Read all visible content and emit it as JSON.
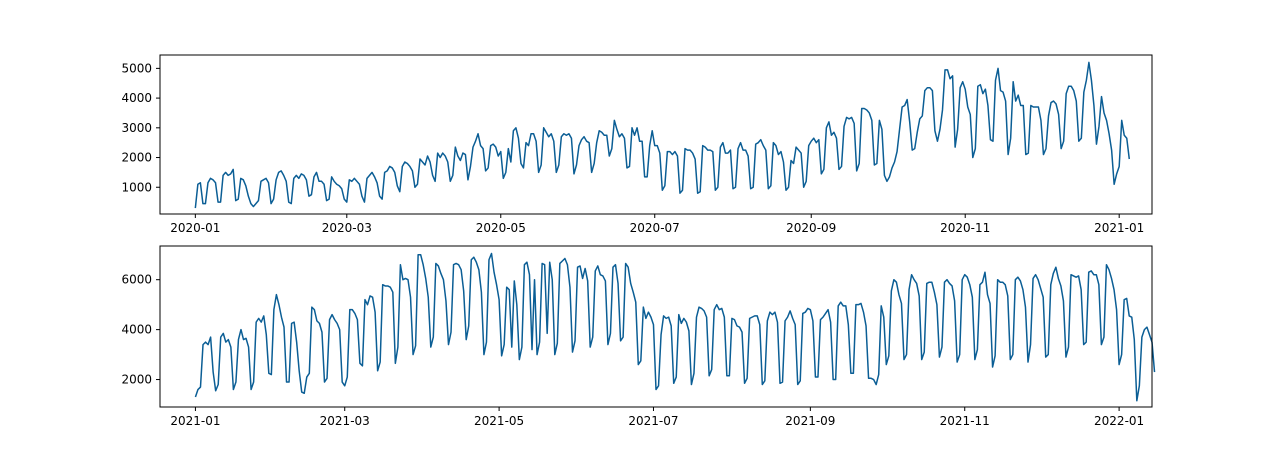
{
  "colors": {
    "line": "#0b5e95",
    "axes": "#000000",
    "background": "#ffffff"
  },
  "chart_data": [
    {
      "type": "line",
      "title": "",
      "xlabel": "",
      "ylabel": "",
      "grid": false,
      "xlim": [
        "2019-12-18",
        "2021-01-14"
      ],
      "ylim": [
        100,
        5450
      ],
      "x_ticks": [
        {
          "date": "2020-01-01",
          "label": "2020-01"
        },
        {
          "date": "2020-03-01",
          "label": "2020-03"
        },
        {
          "date": "2020-05-01",
          "label": "2020-05"
        },
        {
          "date": "2020-07-01",
          "label": "2020-07"
        },
        {
          "date": "2020-09-01",
          "label": "2020-09"
        },
        {
          "date": "2020-11-01",
          "label": "2020-11"
        },
        {
          "date": "2021-01-01",
          "label": "2021-01"
        }
      ],
      "y_ticks": [
        {
          "value": 1000,
          "label": "1000"
        },
        {
          "value": 2000,
          "label": "2000"
        },
        {
          "value": 3000,
          "label": "3000"
        },
        {
          "value": 4000,
          "label": "4000"
        },
        {
          "value": 5000,
          "label": "5000"
        }
      ],
      "series": [
        {
          "start": "2020-01-01",
          "values": [
            300,
            1100,
            1150,
            450,
            450,
            1150,
            1300,
            1250,
            1150,
            500,
            500,
            1400,
            1500,
            1400,
            1450,
            1600,
            550,
            600,
            1300,
            1250,
            1050,
            700,
            450,
            350,
            450,
            550,
            1200,
            1250,
            1300,
            1150,
            450,
            600,
            1250,
            1500,
            1550,
            1400,
            1200,
            500,
            450,
            1300,
            1400,
            1300,
            1450,
            1400,
            1250,
            700,
            750,
            1350,
            1500,
            1200,
            1200,
            1100,
            550,
            600,
            1350,
            1200,
            1100,
            1050,
            950,
            600,
            500,
            1250,
            1200,
            1300,
            1200,
            1100,
            700,
            500,
            1300,
            1400,
            1500,
            1350,
            1150,
            700,
            600,
            1500,
            1550,
            1700,
            1650,
            1500,
            1050,
            850,
            1700,
            1850,
            1800,
            1700,
            1550,
            1000,
            1100,
            1950,
            1850,
            1750,
            2050,
            1850,
            1400,
            1200,
            2150,
            2000,
            2150,
            2050,
            1850,
            1200,
            1400,
            2350,
            2050,
            1900,
            2150,
            2100,
            1250,
            1700,
            2350,
            2550,
            2800,
            2400,
            2300,
            1550,
            1650,
            2400,
            2450,
            2350,
            2050,
            2200,
            1300,
            1500,
            2300,
            1850,
            2900,
            3000,
            2650,
            1800,
            1650,
            2500,
            2400,
            2800,
            2800,
            2550,
            1500,
            1750,
            3000,
            2850,
            2700,
            2800,
            2550,
            1500,
            1750,
            2700,
            2800,
            2750,
            2800,
            2650,
            1450,
            1750,
            2400,
            2600,
            2700,
            2550,
            2500,
            1500,
            1800,
            2500,
            2900,
            2850,
            2750,
            2750,
            2050,
            2300,
            3250,
            2950,
            2700,
            2800,
            2650,
            1650,
            1700,
            3000,
            2750,
            3000,
            2550,
            2550,
            1350,
            1350,
            2400,
            2900,
            2400,
            2400,
            2150,
            900,
            1050,
            2200,
            2200,
            2100,
            2200,
            2050,
            800,
            900,
            2300,
            2250,
            2250,
            2150,
            1950,
            800,
            850,
            2400,
            2350,
            2250,
            2250,
            2200,
            900,
            1000,
            2350,
            2500,
            2150,
            2150,
            2250,
            950,
            1000,
            2300,
            2500,
            2250,
            2250,
            2050,
            950,
            1000,
            2450,
            2500,
            2600,
            2400,
            2250,
            950,
            1050,
            2500,
            2400,
            2100,
            2200,
            1850,
            900,
            1000,
            1900,
            1800,
            2350,
            2250,
            2150,
            1000,
            1200,
            2400,
            2550,
            2650,
            2500,
            2600,
            1450,
            1600,
            3000,
            3200,
            2750,
            2850,
            2650,
            1600,
            1700,
            3050,
            3350,
            3300,
            3350,
            3150,
            1550,
            1800,
            3650,
            3650,
            3600,
            3500,
            3250,
            1750,
            1800,
            3250,
            2950,
            1400,
            1200,
            1350,
            1650,
            1850,
            2200,
            2950,
            3700,
            3750,
            3950,
            3200,
            2250,
            2300,
            2850,
            3300,
            3400,
            4250,
            4350,
            4350,
            4250,
            2900,
            2550,
            2950,
            3600,
            4950,
            4950,
            4650,
            4750,
            2350,
            2950,
            4350,
            4550,
            4300,
            3700,
            3450,
            2000,
            2300,
            4400,
            4450,
            4150,
            4300,
            3750,
            2600,
            2550,
            4600,
            5000,
            4250,
            4200,
            3900,
            2100,
            2650,
            4550,
            3900,
            4100,
            3750,
            3750,
            2100,
            2150,
            3750,
            3700,
            3700,
            3700,
            3250,
            2100,
            2300,
            3400,
            3850,
            3900,
            3800,
            3450,
            2300,
            2550,
            4150,
            4400,
            4400,
            4250,
            3900,
            2550,
            2650,
            4200,
            4600,
            5200,
            4600,
            3750,
            2450,
            3050,
            4050,
            3500,
            3250,
            2800,
            2250,
            1100,
            1450,
            1700,
            3250,
            2750,
            2650,
            1950
          ]
        }
      ]
    },
    {
      "type": "line",
      "title": "",
      "xlabel": "",
      "ylabel": "",
      "grid": false,
      "xlim": [
        "2020-12-18",
        "2022-01-14"
      ],
      "ylim": [
        900,
        7350
      ],
      "x_ticks": [
        {
          "date": "2021-01-01",
          "label": "2021-01"
        },
        {
          "date": "2021-03-01",
          "label": "2021-03"
        },
        {
          "date": "2021-05-01",
          "label": "2021-05"
        },
        {
          "date": "2021-07-01",
          "label": "2021-07"
        },
        {
          "date": "2021-09-01",
          "label": "2021-09"
        },
        {
          "date": "2021-11-01",
          "label": "2021-11"
        },
        {
          "date": "2022-01-01",
          "label": "2022-01"
        }
      ],
      "y_ticks": [
        {
          "value": 2000,
          "label": "2000"
        },
        {
          "value": 4000,
          "label": "4000"
        },
        {
          "value": 6000,
          "label": "6000"
        }
      ],
      "series": [
        {
          "start": "2021-01-01",
          "values": [
            1300,
            1600,
            1700,
            3400,
            3500,
            3400,
            3700,
            2300,
            1550,
            1800,
            3700,
            3850,
            3500,
            3600,
            3300,
            1600,
            1900,
            3600,
            4000,
            3600,
            3650,
            3300,
            1600,
            1900,
            4300,
            4450,
            4300,
            4550,
            3800,
            2250,
            2200,
            4800,
            5400,
            5000,
            4500,
            4100,
            1900,
            1900,
            4250,
            4300,
            3500,
            2350,
            1500,
            1450,
            2100,
            2250,
            4900,
            4800,
            4350,
            4250,
            3900,
            1900,
            2050,
            4400,
            4600,
            4400,
            4250,
            4000,
            1900,
            1750,
            2100,
            4800,
            4800,
            4650,
            4400,
            2650,
            2550,
            5200,
            5000,
            5350,
            5300,
            4700,
            2350,
            2700,
            5800,
            5750,
            5750,
            5700,
            5500,
            2650,
            3300,
            6600,
            6000,
            6050,
            6000,
            5300,
            3000,
            3350,
            7000,
            7000,
            6600,
            6050,
            5300,
            3300,
            3700,
            6650,
            6550,
            6250,
            6000,
            5150,
            3400,
            3900,
            6600,
            6650,
            6600,
            6400,
            5550,
            3600,
            4150,
            6800,
            6900,
            6700,
            6400,
            5500,
            3000,
            3500,
            6800,
            7050,
            6300,
            5800,
            5200,
            2950,
            3400,
            5700,
            5600,
            3300,
            5950,
            5000,
            2800,
            3300,
            6600,
            6700,
            6200,
            3200,
            6000,
            3000,
            3500,
            6650,
            6600,
            3850,
            6700,
            6000,
            3000,
            3450,
            6650,
            6750,
            6850,
            6600,
            5700,
            3100,
            3550,
            6500,
            6550,
            6050,
            6450,
            5950,
            3300,
            3700,
            6350,
            6550,
            6200,
            6150,
            5950,
            3400,
            3850,
            6500,
            6600,
            5850,
            3550,
            3700,
            6650,
            6500,
            5850,
            5500,
            5100,
            2600,
            2750,
            4900,
            4450,
            4700,
            4500,
            4200,
            1600,
            1750,
            3800,
            4550,
            4450,
            4500,
            4150,
            1850,
            2100,
            4600,
            4250,
            4450,
            4300,
            3950,
            1800,
            2250,
            4500,
            4900,
            4850,
            4750,
            4500,
            2150,
            2400,
            4800,
            5000,
            4800,
            4850,
            4500,
            2150,
            2150,
            4450,
            4400,
            4150,
            4100,
            3900,
            1850,
            2050,
            4450,
            4500,
            4550,
            4550,
            4200,
            1800,
            1950,
            4350,
            4700,
            4600,
            4700,
            4300,
            1850,
            1900,
            4350,
            4500,
            4750,
            4450,
            4200,
            1800,
            1950,
            4650,
            4700,
            4850,
            4800,
            4350,
            2100,
            2100,
            4400,
            4500,
            4650,
            4800,
            4300,
            2000,
            2000,
            4950,
            5100,
            4950,
            4950,
            4200,
            2250,
            2250,
            5000,
            5000,
            5050,
            4700,
            4150,
            2050,
            2050,
            2000,
            1800,
            2200,
            4950,
            4500,
            2600,
            2950,
            5550,
            6000,
            5900,
            5400,
            5050,
            2800,
            3000,
            5600,
            6200,
            6000,
            5850,
            5350,
            2800,
            3100,
            5850,
            5900,
            5900,
            5500,
            5000,
            2900,
            3300,
            5900,
            6000,
            5850,
            5750,
            5150,
            2700,
            3000,
            6000,
            6200,
            6100,
            5800,
            5300,
            2800,
            3200,
            5800,
            5900,
            6300,
            5400,
            5050,
            2500,
            2950,
            6000,
            5900,
            5900,
            5800,
            5350,
            2800,
            3000,
            6000,
            6100,
            5950,
            5600,
            4900,
            2700,
            3400,
            6050,
            6200,
            6000,
            5650,
            5300,
            2900,
            3000,
            5800,
            6250,
            6500,
            6050,
            5750,
            5150,
            2900,
            3300,
            6200,
            6150,
            6100,
            6150,
            5600,
            3400,
            3500,
            6300,
            6350,
            6200,
            6200,
            5800,
            3400,
            3700,
            6600,
            6400,
            6050,
            5600,
            4800,
            2600,
            3000,
            5200,
            5250,
            4550,
            4500,
            3600,
            1150,
            1750,
            3700,
            4000,
            4100,
            3800,
            3500,
            2300
          ]
        }
      ]
    }
  ]
}
